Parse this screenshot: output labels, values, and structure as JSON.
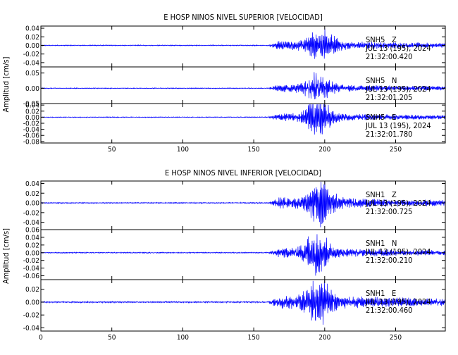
{
  "chart_data": [
    {
      "type": "line",
      "title": "E HOSP NINOS NIVEL SUPERIOR [VELOCIDAD]",
      "ylabel": "Amplitud [cm/s]",
      "xlim": [
        0,
        285
      ],
      "xticks": [
        "50",
        "100",
        "150",
        "200",
        "250"
      ],
      "line_color": "#0000ff",
      "grid": false,
      "panels": [
        {
          "station": "SNH5",
          "channel": "Z",
          "date": "JUL 13 (195), 2024",
          "time": "21:32:00.420",
          "ylim": [
            -0.05,
            0.045
          ],
          "yticks": [
            "0.04",
            "0.02",
            "0.00",
            "-0.02",
            "-0.04"
          ],
          "signal": {
            "noise_amp": 0.0012,
            "onset": 160,
            "coda_amp": 0.01,
            "peak_time": 198,
            "peak_amp": 0.036
          }
        },
        {
          "station": "SNH5",
          "channel": "N",
          "date": "JUL 13 (195), 2024",
          "time": "21:32:01.205",
          "ylim": [
            -0.05,
            0.07
          ],
          "yticks": [
            "0.05",
            "0.00",
            "-0.05"
          ],
          "signal": {
            "noise_amp": 0.0015,
            "onset": 160,
            "coda_amp": 0.012,
            "peak_time": 195,
            "peak_amp": 0.045
          }
        },
        {
          "station": "SNH5",
          "channel": "E",
          "date": "JUL 13 (195), 2024",
          "time": "21:32:01.780",
          "ylim": [
            -0.085,
            0.045
          ],
          "yticks": [
            "0.04",
            "0.02",
            "0.00",
            "-0.02",
            "-0.04",
            "-0.06",
            "-0.08"
          ],
          "signal": {
            "noise_amp": 0.0015,
            "onset": 160,
            "coda_amp": 0.012,
            "peak_time": 196,
            "peak_amp": 0.065
          }
        }
      ]
    },
    {
      "type": "line",
      "title": "E HOSP NINOS NIVEL INFERIOR [VELOCIDAD]",
      "ylabel": "Amplitud [cm/s]",
      "xlim": [
        0,
        285
      ],
      "xticks": [
        "0",
        "50",
        "100",
        "150",
        "200",
        "250"
      ],
      "line_color": "#0000ff",
      "grid": false,
      "panels": [
        {
          "station": "SNH1",
          "channel": "Z",
          "date": "JUL 13 (195), 2024",
          "time": "21:32:00.725",
          "ylim": [
            -0.055,
            0.045
          ],
          "yticks": [
            "0.04",
            "0.02",
            "0.00",
            "-0.02",
            "-0.04"
          ],
          "signal": {
            "noise_amp": 0.0012,
            "onset": 160,
            "coda_amp": 0.011,
            "peak_time": 198,
            "peak_amp": 0.04
          }
        },
        {
          "station": "SNH1",
          "channel": "N",
          "date": "JUL 13 (195), 2024",
          "time": "21:32:00.210",
          "ylim": [
            -0.07,
            0.06
          ],
          "yticks": [
            "0.06",
            "0.04",
            "0.02",
            "0.00",
            "-0.02",
            "-0.04",
            "-0.06"
          ],
          "signal": {
            "noise_amp": 0.0015,
            "onset": 160,
            "coda_amp": 0.012,
            "peak_time": 194,
            "peak_amp": 0.052
          }
        },
        {
          "station": "SNH1",
          "channel": "E",
          "date": "JUL 13 (195), 2024",
          "time": "21:32:00.460",
          "ylim": [
            -0.045,
            0.035
          ],
          "yticks": [
            "0.02",
            "0.00",
            "-0.02",
            "-0.04"
          ],
          "signal": {
            "noise_amp": 0.0012,
            "onset": 160,
            "coda_amp": 0.01,
            "peak_time": 196,
            "peak_amp": 0.03
          }
        }
      ]
    }
  ]
}
